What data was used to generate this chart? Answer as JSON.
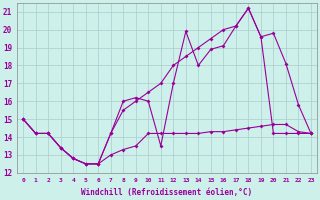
{
  "xlabel": "Windchill (Refroidissement éolien,°C)",
  "background_color": "#cef0ea",
  "grid_color": "#aacccc",
  "line_color": "#990099",
  "xlim": [
    -0.5,
    23.5
  ],
  "ylim": [
    12,
    21.5
  ],
  "yticks": [
    12,
    13,
    14,
    15,
    16,
    17,
    18,
    19,
    20,
    21
  ],
  "xticks": [
    0,
    1,
    2,
    3,
    4,
    5,
    6,
    7,
    8,
    9,
    10,
    11,
    12,
    13,
    14,
    15,
    16,
    17,
    18,
    19,
    20,
    21,
    22,
    23
  ],
  "series1_x": [
    0,
    1,
    2,
    3,
    4,
    5,
    6,
    7,
    8,
    9,
    10,
    11,
    12,
    13,
    14,
    15,
    16,
    17,
    18,
    19,
    20,
    21,
    22,
    23
  ],
  "series1_y": [
    15.0,
    14.2,
    14.2,
    13.4,
    12.8,
    12.5,
    12.5,
    13.0,
    13.3,
    13.5,
    14.2,
    14.2,
    14.2,
    14.2,
    14.2,
    14.3,
    14.3,
    14.4,
    14.5,
    14.6,
    14.7,
    14.7,
    14.3,
    14.2
  ],
  "series2_x": [
    0,
    1,
    2,
    3,
    4,
    5,
    6,
    7,
    8,
    9,
    10,
    11,
    12,
    13,
    14,
    15,
    16,
    17,
    18,
    19,
    20,
    21,
    22,
    23
  ],
  "series2_y": [
    15.0,
    14.2,
    14.2,
    13.4,
    12.8,
    12.5,
    12.5,
    14.2,
    15.5,
    16.0,
    16.5,
    17.0,
    18.0,
    18.5,
    19.0,
    19.5,
    20.0,
    20.2,
    21.2,
    19.6,
    19.8,
    18.1,
    15.8,
    14.2
  ],
  "series3_x": [
    0,
    1,
    2,
    3,
    4,
    5,
    6,
    7,
    8,
    9,
    10,
    11,
    12,
    13,
    14,
    15,
    16,
    17,
    18,
    19,
    20,
    21,
    22,
    23
  ],
  "series3_y": [
    15.0,
    14.2,
    14.2,
    13.4,
    12.8,
    12.5,
    12.5,
    14.2,
    16.0,
    16.2,
    16.0,
    13.5,
    17.0,
    19.9,
    18.0,
    18.9,
    19.1,
    20.2,
    21.2,
    19.6,
    14.2,
    14.2,
    14.2,
    14.2
  ]
}
